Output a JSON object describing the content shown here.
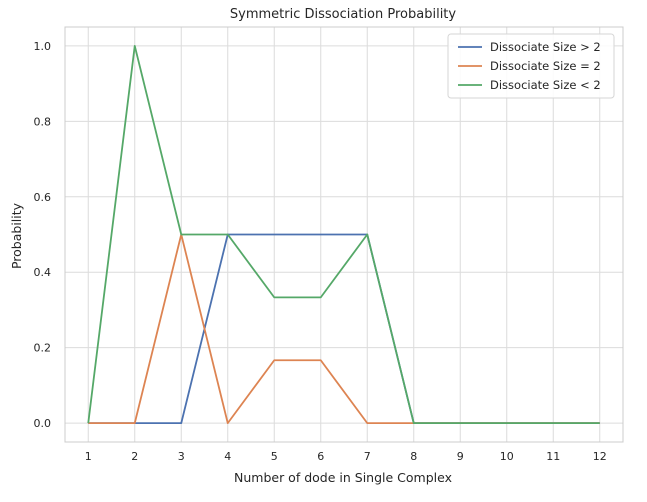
{
  "chart_data": {
    "type": "line",
    "title": "Symmetric Dissociation Probability",
    "xlabel": "Number of dode in Single Complex",
    "ylabel": "Probability",
    "x": [
      1,
      2,
      3,
      4,
      5,
      6,
      7,
      8,
      9,
      10,
      11,
      12
    ],
    "xlim": [
      0.5,
      12.5
    ],
    "ylim": [
      -0.05,
      1.05
    ],
    "yticks": [
      "0.0",
      "0.2",
      "0.4",
      "0.6",
      "0.8",
      "1.0"
    ],
    "grid": true,
    "legend": "top-right",
    "series": [
      {
        "name": "Dissociate Size > 2",
        "color": "#4c72b0",
        "values": [
          0,
          0,
          0,
          0.5,
          0.5,
          0.5,
          0.5,
          0,
          0,
          0,
          0,
          0
        ]
      },
      {
        "name": "Dissociate Size = 2",
        "color": "#dd8452",
        "values": [
          0,
          0,
          0.5,
          0,
          0.1667,
          0.1667,
          0,
          0,
          0,
          0,
          0,
          0
        ]
      },
      {
        "name": "Dissociate Size < 2",
        "color": "#55a868",
        "values": [
          0,
          1.0,
          0.5,
          0.5,
          0.3333,
          0.3333,
          0.5,
          0,
          0,
          0,
          0,
          0
        ]
      }
    ]
  }
}
